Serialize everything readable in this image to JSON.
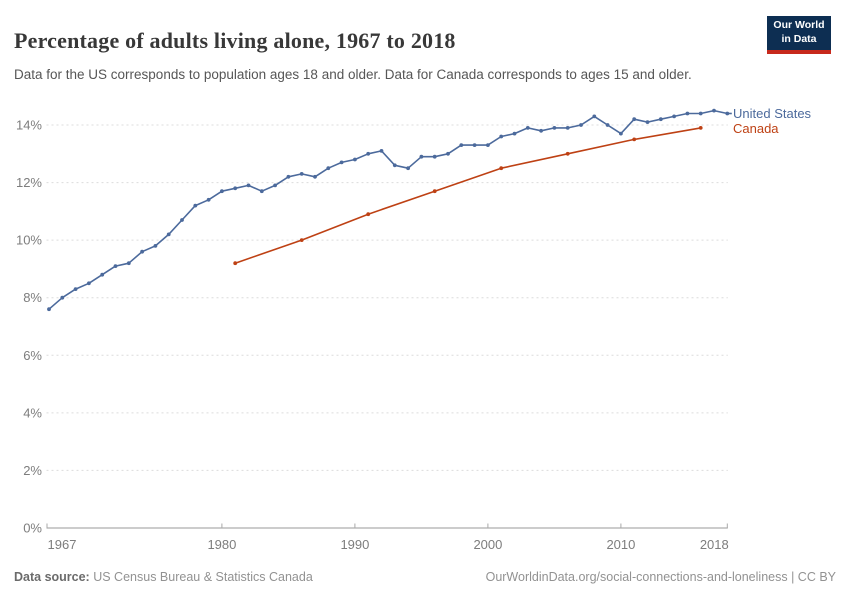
{
  "header": {
    "title": "Percentage of adults living alone, 1967 to 2018",
    "subtitle": "Data for the US corresponds to population ages 18 and older. Data for Canada corresponds to ages 15 and older.",
    "logo": {
      "line1": "Our World",
      "line2": "in Data",
      "bg_color": "#0d2e52",
      "accent_color": "#c7291c"
    }
  },
  "chart_data": {
    "type": "line",
    "title": "Percentage of adults living alone, 1967 to 2018",
    "xlabel": "",
    "ylabel": "",
    "ylim": [
      0,
      14
    ],
    "grid": true,
    "grid_style": "dashed",
    "legend_position": "right of line ends",
    "yticks": [
      {
        "value": 0,
        "label": "0%"
      },
      {
        "value": 2,
        "label": "2%"
      },
      {
        "value": 4,
        "label": "4%"
      },
      {
        "value": 6,
        "label": "6%"
      },
      {
        "value": 8,
        "label": "8%"
      },
      {
        "value": 10,
        "label": "10%"
      },
      {
        "value": 12,
        "label": "12%"
      },
      {
        "value": 14,
        "label": "14%"
      }
    ],
    "xticks": [
      1967,
      1980,
      1990,
      2000,
      2010,
      2018
    ],
    "series": [
      {
        "name": "United States",
        "color": "#4c6a9c",
        "x": [
          1967,
          1968,
          1969,
          1970,
          1971,
          1972,
          1973,
          1974,
          1975,
          1976,
          1977,
          1978,
          1979,
          1980,
          1981,
          1982,
          1983,
          1984,
          1985,
          1986,
          1987,
          1988,
          1989,
          1990,
          1991,
          1992,
          1993,
          1994,
          1995,
          1996,
          1997,
          1998,
          1999,
          2000,
          2001,
          2002,
          2003,
          2004,
          2005,
          2006,
          2007,
          2008,
          2009,
          2010,
          2011,
          2012,
          2013,
          2014,
          2015,
          2016,
          2017,
          2018
        ],
        "values": [
          7.6,
          8.0,
          8.3,
          8.5,
          8.8,
          9.1,
          9.2,
          9.6,
          9.8,
          10.2,
          10.7,
          11.2,
          11.4,
          11.7,
          11.8,
          11.9,
          11.7,
          11.9,
          12.2,
          12.3,
          12.2,
          12.5,
          12.7,
          12.8,
          13.0,
          13.1,
          12.6,
          12.5,
          12.9,
          12.9,
          13.0,
          13.3,
          13.3,
          13.3,
          13.6,
          13.7,
          13.9,
          13.8,
          13.9,
          13.9,
          14.0,
          14.3,
          14.0,
          13.7,
          14.2,
          14.1,
          14.2,
          14.3,
          14.4,
          14.4,
          14.5,
          14.4
        ]
      },
      {
        "name": "Canada",
        "color": "#be4114",
        "x": [
          1981,
          1986,
          1991,
          1996,
          2001,
          2006,
          2011,
          2016
        ],
        "values": [
          9.2,
          10.0,
          10.9,
          11.7,
          12.5,
          13.0,
          13.5,
          13.9
        ]
      }
    ]
  },
  "footer": {
    "source_label": "Data source:",
    "source_value": "US Census Bureau & Statistics Canada",
    "attribution": "OurWorldinData.org/social-connections-and-loneliness | CC BY"
  }
}
